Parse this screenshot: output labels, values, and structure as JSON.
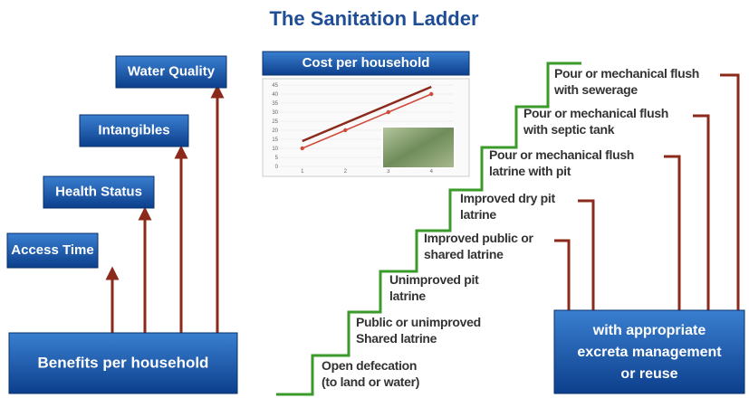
{
  "title": "The Sanitation Ladder",
  "benefits": {
    "items": [
      "Access Time",
      "Health Status",
      "Intangibles",
      "Water Quality"
    ],
    "base": "Benefits per household"
  },
  "cost": {
    "banner": "Cost per household",
    "chart": {
      "categories": [
        "1",
        "2",
        "3",
        "4"
      ],
      "ylim": [
        0,
        45
      ],
      "yticks": [
        0,
        5,
        10,
        15,
        20,
        25,
        30,
        35,
        40,
        45
      ],
      "series": [
        {
          "color": "#8b2a1a",
          "values": [
            14,
            24,
            34,
            44
          ]
        },
        {
          "color": "#d04a3a",
          "values": [
            10,
            20,
            30,
            40
          ]
        }
      ]
    }
  },
  "ladder": {
    "steps": [
      [
        "Open defecation",
        "(to land or water)"
      ],
      [
        "Public or unimproved",
        "Shared latrine"
      ],
      [
        "Unimproved pit",
        "latrine"
      ],
      [
        "Improved public or",
        "shared latrine"
      ],
      [
        "Improved dry pit",
        "latrine"
      ],
      [
        "Pour or mechanical flush",
        "latrine with pit"
      ],
      [
        "Pour or mechanical flush",
        "with septic tank"
      ],
      [
        "Pour or mechanical flush",
        "with sewerage"
      ]
    ],
    "outcome": [
      "with appropriate",
      "excreta management",
      "or reuse"
    ]
  }
}
